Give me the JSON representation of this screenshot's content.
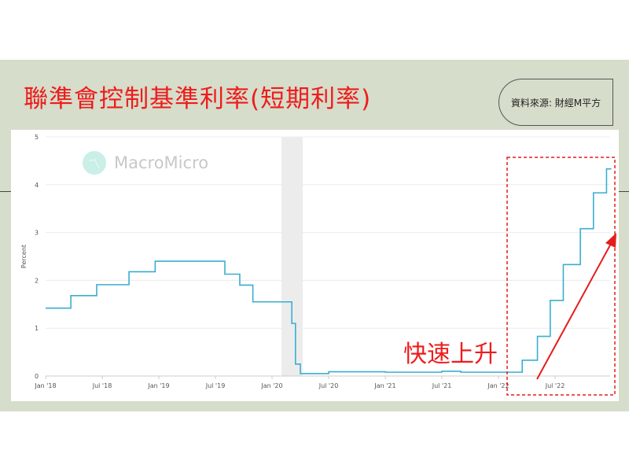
{
  "title": "聯準會控制基準利率(短期利率)",
  "source": "資料來源: 財經M平方",
  "watermark": "MacroMicro",
  "annotation": "快速上升",
  "colors": {
    "line": "#3aaed0",
    "highlight": "#e51c1c",
    "recession": "#ececec",
    "background": "#d6ddca"
  },
  "chart_data": {
    "type": "line",
    "ylabel": "Percent",
    "ylim": [
      0,
      5
    ],
    "yticks": [
      "0",
      "1",
      "2",
      "3",
      "4",
      "5"
    ],
    "xticks": [
      "Jan '18",
      "Jul '18",
      "Jan '19",
      "Jul '19",
      "Jan '20",
      "Jul '20",
      "Jan '21",
      "Jul '21",
      "Jan '22",
      "Jul '22"
    ],
    "xlim": [
      "2018-01",
      "2023-01"
    ],
    "grid": true,
    "recession_shading": [
      "2020-02",
      "2020-04"
    ],
    "highlight_box": [
      "2022-02",
      "2022-12"
    ],
    "series": [
      {
        "step": true,
        "points": [
          [
            "2018-01-01",
            1.42
          ],
          [
            "2018-03-22",
            1.68
          ],
          [
            "2018-06-14",
            1.91
          ],
          [
            "2018-09-27",
            2.18
          ],
          [
            "2018-12-20",
            2.4
          ],
          [
            "2019-08-01",
            2.13
          ],
          [
            "2019-09-19",
            1.9
          ],
          [
            "2019-10-31",
            1.55
          ],
          [
            "2020-03-04",
            1.1
          ],
          [
            "2020-03-16",
            0.25
          ],
          [
            "2020-04-01",
            0.05
          ],
          [
            "2020-07-01",
            0.09
          ],
          [
            "2021-01-01",
            0.08
          ],
          [
            "2021-07-01",
            0.1
          ],
          [
            "2021-09-01",
            0.08
          ],
          [
            "2022-03-17",
            0.33
          ],
          [
            "2022-05-05",
            0.83
          ],
          [
            "2022-06-16",
            1.58
          ],
          [
            "2022-07-28",
            2.33
          ],
          [
            "2022-09-22",
            3.08
          ],
          [
            "2022-11-03",
            3.83
          ],
          [
            "2022-12-15",
            4.33
          ],
          [
            "2022-12-31",
            4.33
          ]
        ]
      }
    ]
  }
}
